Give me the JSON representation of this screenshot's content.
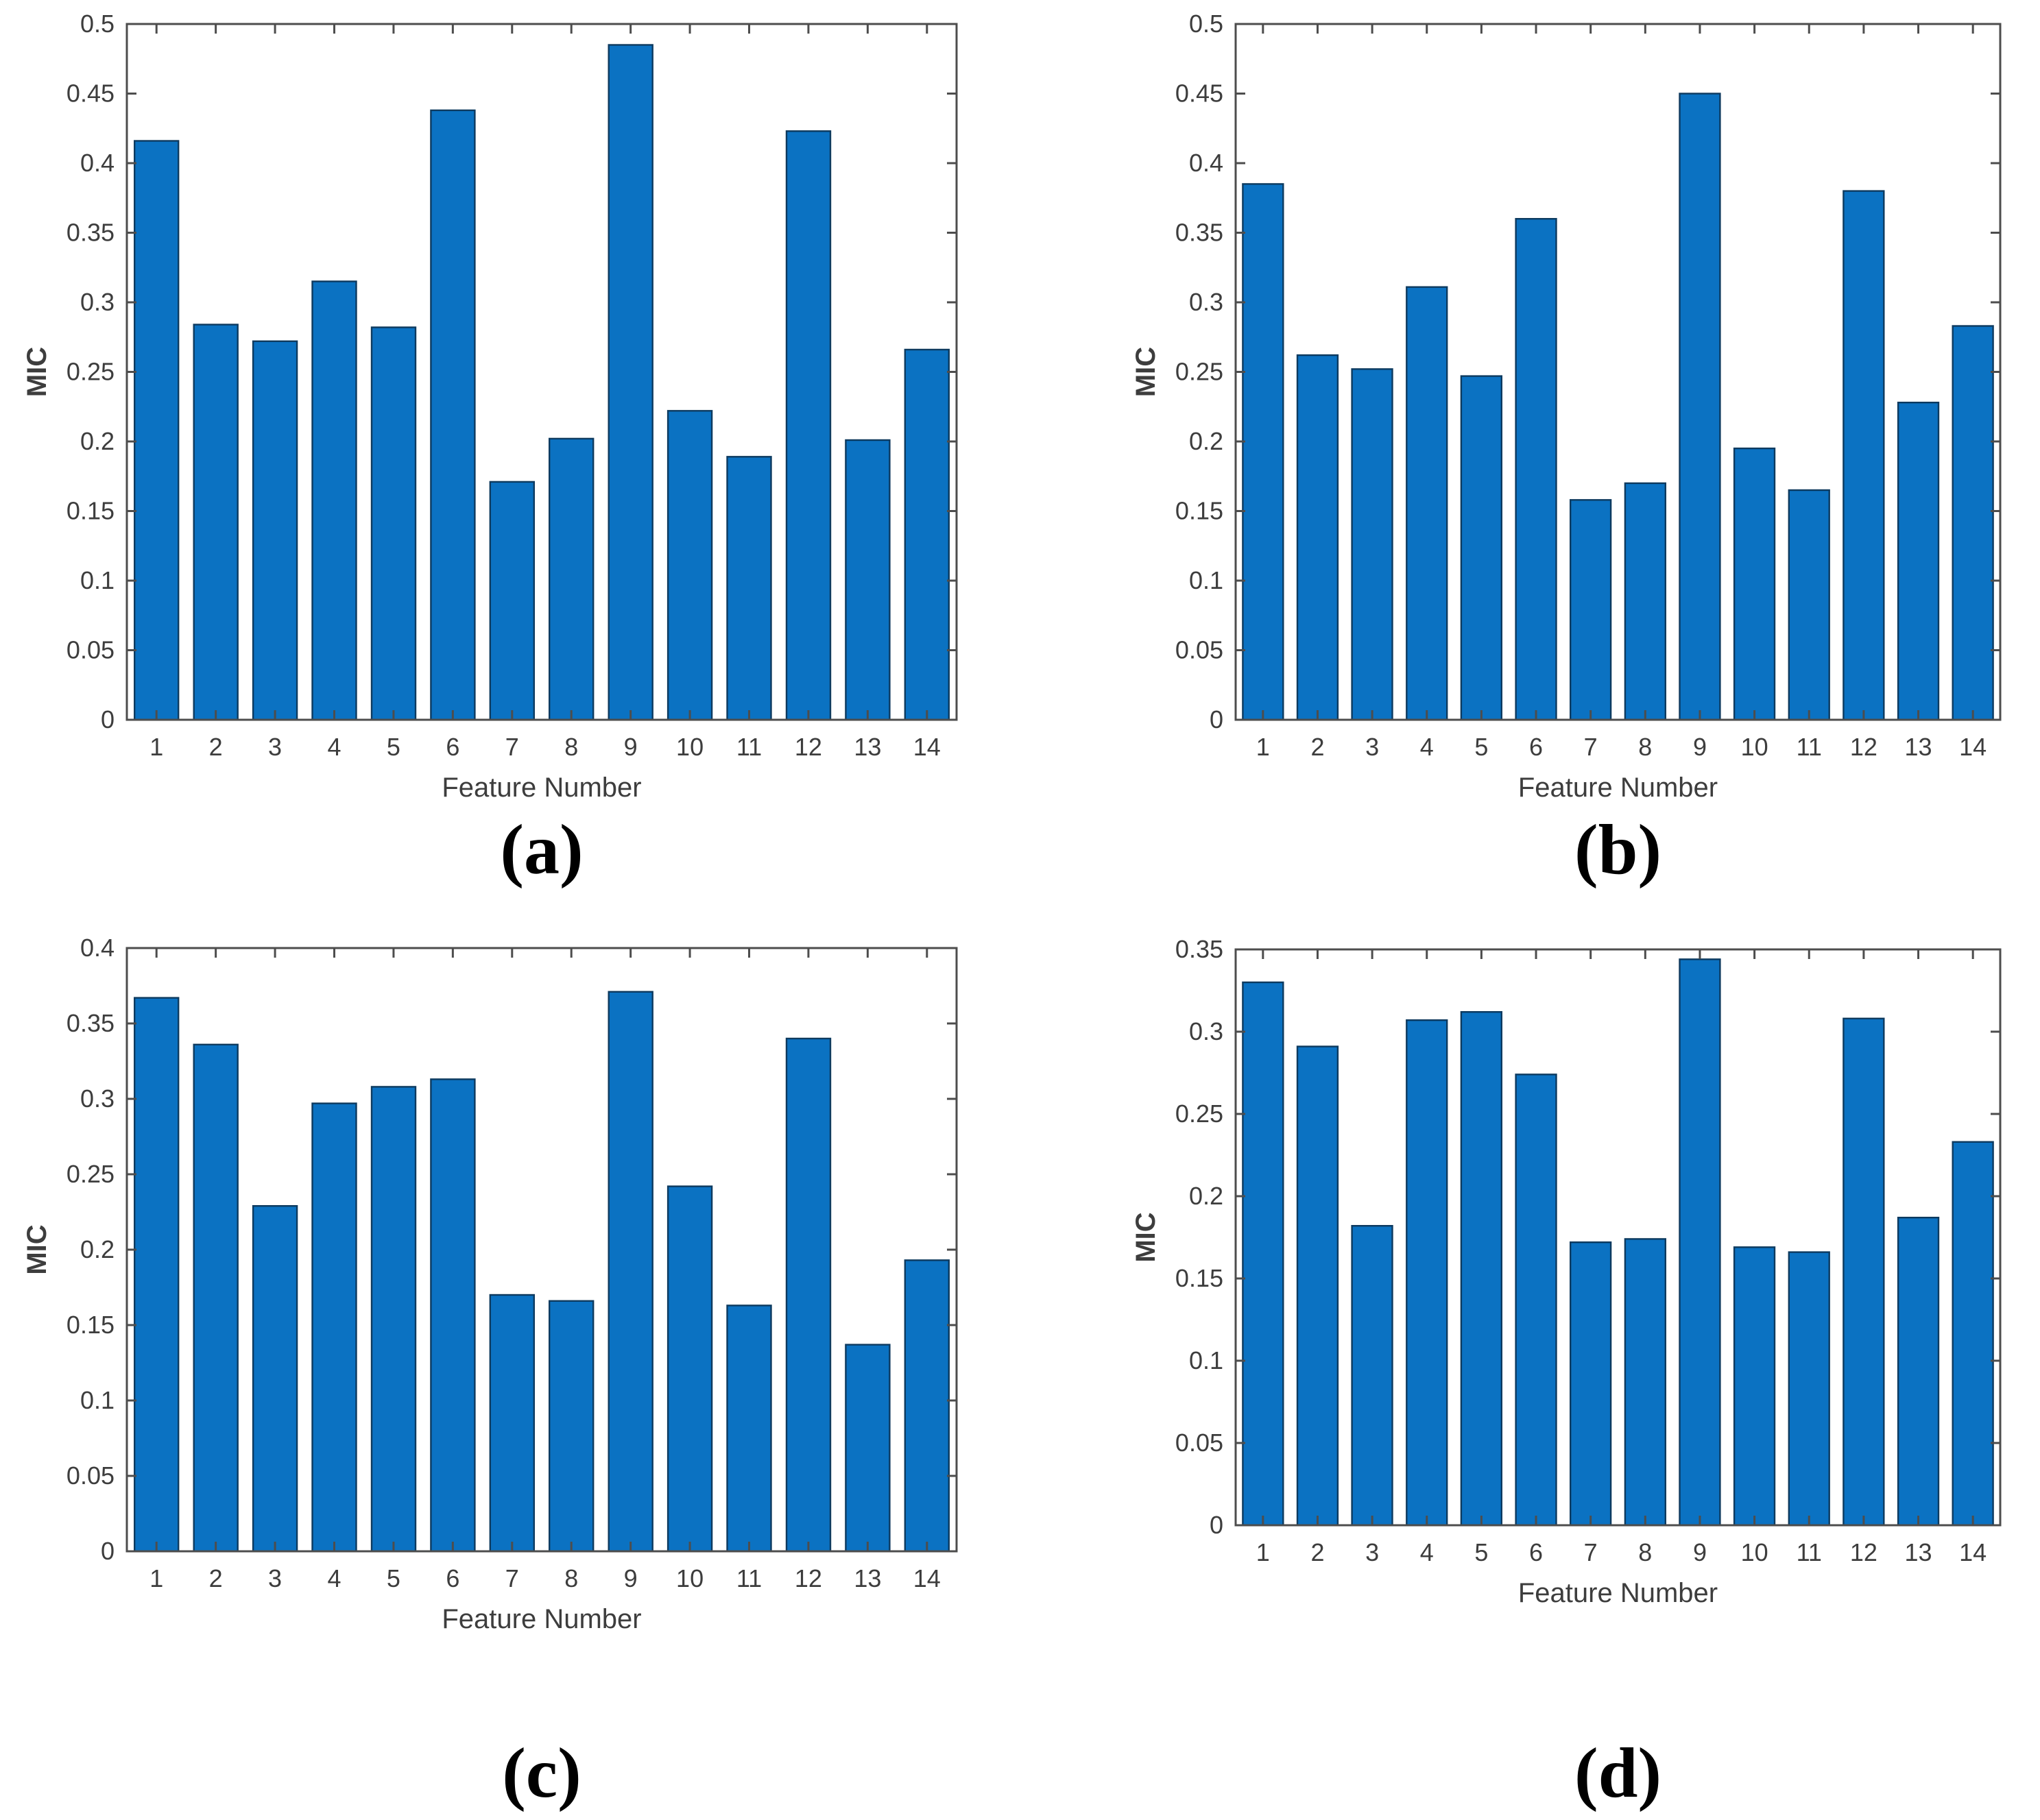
{
  "captions": [
    "(a)",
    "(b)",
    "(c)",
    "(d)"
  ],
  "colors": {
    "bar_fill": "#0b72c2",
    "bar_edge": "#0d3a5f",
    "axis": "#4d4d4d",
    "tick_text": "#3d3d3d",
    "label_text": "#3d3d3d"
  },
  "chart_data": [
    {
      "type": "bar",
      "panel_label": "(a)",
      "categories": [
        "1",
        "2",
        "3",
        "4",
        "5",
        "6",
        "7",
        "8",
        "9",
        "10",
        "11",
        "12",
        "13",
        "14"
      ],
      "values": [
        0.416,
        0.284,
        0.272,
        0.315,
        0.282,
        0.438,
        0.171,
        0.202,
        0.485,
        0.222,
        0.189,
        0.423,
        0.201,
        0.266
      ],
      "title": "",
      "xlabel": "Feature Number",
      "ylabel": "MIC",
      "ylim": [
        0,
        0.5
      ],
      "ytick_step": 0.05,
      "grid": "off",
      "legend": "none"
    },
    {
      "type": "bar",
      "panel_label": "(b)",
      "categories": [
        "1",
        "2",
        "3",
        "4",
        "5",
        "6",
        "7",
        "8",
        "9",
        "10",
        "11",
        "12",
        "13",
        "14"
      ],
      "values": [
        0.385,
        0.262,
        0.252,
        0.311,
        0.247,
        0.36,
        0.158,
        0.17,
        0.45,
        0.195,
        0.165,
        0.38,
        0.228,
        0.283
      ],
      "title": "",
      "xlabel": "Feature Number",
      "ylabel": "MIC",
      "ylim": [
        0,
        0.5
      ],
      "ytick_step": 0.05,
      "grid": "off",
      "legend": "none"
    },
    {
      "type": "bar",
      "panel_label": "(c)",
      "categories": [
        "1",
        "2",
        "3",
        "4",
        "5",
        "6",
        "7",
        "8",
        "9",
        "10",
        "11",
        "12",
        "13",
        "14"
      ],
      "values": [
        0.367,
        0.336,
        0.229,
        0.297,
        0.308,
        0.313,
        0.17,
        0.166,
        0.371,
        0.242,
        0.163,
        0.34,
        0.137,
        0.193
      ],
      "title": "",
      "xlabel": "Feature Number",
      "ylabel": "MIC",
      "ylim": [
        0,
        0.4
      ],
      "ytick_step": 0.05,
      "grid": "off",
      "legend": "none"
    },
    {
      "type": "bar",
      "panel_label": "(d)",
      "categories": [
        "1",
        "2",
        "3",
        "4",
        "5",
        "6",
        "7",
        "8",
        "9",
        "10",
        "11",
        "12",
        "13",
        "14"
      ],
      "values": [
        0.33,
        0.291,
        0.182,
        0.307,
        0.312,
        0.274,
        0.172,
        0.174,
        0.344,
        0.169,
        0.166,
        0.308,
        0.187,
        0.233
      ],
      "title": "",
      "xlabel": "Feature Number",
      "ylabel": "MIC",
      "ylim": [
        0,
        0.35
      ],
      "ytick_step": 0.05,
      "grid": "off",
      "legend": "none"
    }
  ]
}
